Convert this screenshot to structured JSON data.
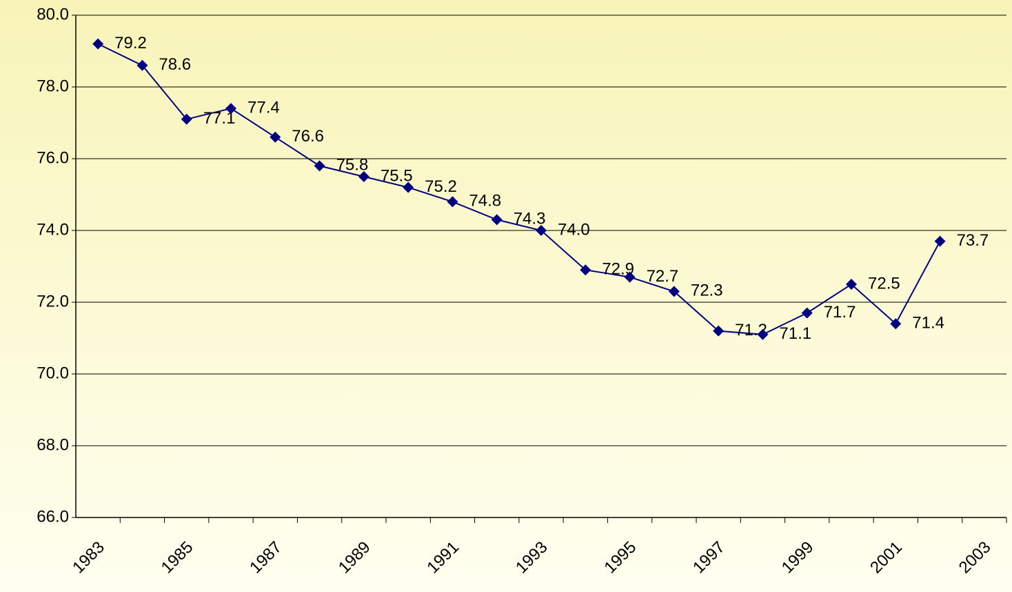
{
  "chart_data": {
    "type": "line",
    "categories": [
      "1983",
      null,
      "1985",
      null,
      "1987",
      null,
      "1989",
      null,
      "1991",
      null,
      "1993",
      null,
      "1995",
      null,
      "1997",
      null,
      "1999",
      null,
      "2001",
      null,
      "2003"
    ],
    "series": [
      {
        "color": "#000080",
        "values": [
          79.2,
          78.6,
          77.1,
          77.4,
          76.6,
          75.8,
          75.5,
          75.2,
          74.8,
          74.3,
          74.0,
          72.9,
          72.7,
          72.3,
          71.2,
          71.1,
          71.7,
          72.5,
          71.4,
          73.7,
          null
        ],
        "value_labels": [
          "79.2",
          "78.6",
          "77.1",
          "77.4",
          "76.6",
          "75.8",
          "75.5",
          "75.2",
          "74.8",
          "74.3",
          "74.0",
          "72.9",
          "72.7",
          "72.3",
          "71.2",
          "71.1",
          "71.7",
          "72.5",
          "71.4",
          "73.7",
          null
        ]
      }
    ],
    "ylim": [
      66,
      80
    ],
    "yticks": [
      {
        "value": 66,
        "label": "66.0"
      },
      {
        "value": 68,
        "label": "68.0"
      },
      {
        "value": 70,
        "label": "70.0"
      },
      {
        "value": 72,
        "label": "72.0"
      },
      {
        "value": 74,
        "label": "74.0"
      },
      {
        "value": 76,
        "label": "76.0"
      },
      {
        "value": 78,
        "label": "78.0"
      },
      {
        "value": 80,
        "label": "80.0"
      }
    ],
    "grid": true
  }
}
